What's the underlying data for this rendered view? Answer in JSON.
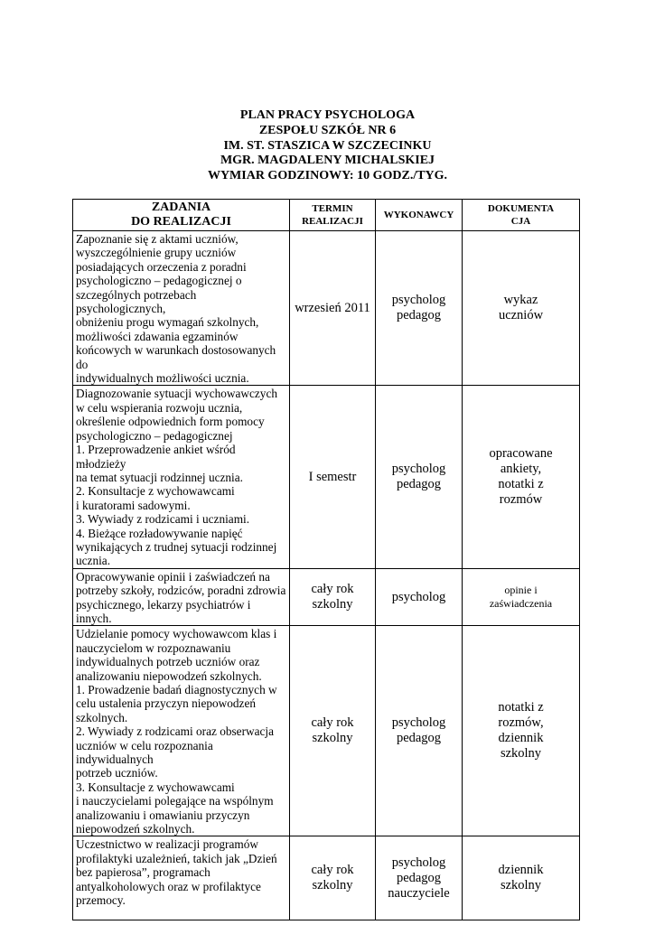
{
  "title_lines": [
    "PLAN PRACY PSYCHOLOGA",
    "ZESPOŁU SZKÓŁ NR 6",
    "IM. ST. STASZICA W SZCZECINKU",
    "MGR. MAGDALENY MICHALSKIEJ",
    "WYMIAR GODZINOWY: 10 GODZ./TYG."
  ],
  "table": {
    "headers": [
      [
        "ZADANIA",
        "DO REALIZACJI"
      ],
      [
        "TERMIN",
        "REALIZACJI"
      ],
      [
        "WYKONAWCY"
      ],
      [
        "DOKUMENTA",
        "CJA"
      ]
    ],
    "rows": [
      {
        "task": [
          "Zapoznanie się z aktami uczniów,",
          "wyszczególnienie grupy uczniów",
          "posiadających orzeczenia z poradni",
          "psychologiczno – pedagogicznej o",
          "szczególnych potrzebach psychologicznych,",
          "obniżeniu progu wymagań szkolnych,",
          "możliwości zdawania egzaminów",
          "końcowych w warunkach dostosowanych do",
          "indywidualnych możliwości ucznia."
        ],
        "termin": [
          "wrzesień 2011"
        ],
        "wykonawcy": [
          "psycholog",
          "pedagog"
        ],
        "dokumentacja": [
          "wykaz",
          "uczniów"
        ]
      },
      {
        "task": [
          "Diagnozowanie sytuacji wychowawczych",
          "w celu wspierania rozwoju ucznia,",
          "określenie odpowiednich form pomocy",
          "psychologiczno – pedagogicznej",
          "1. Przeprowadzenie ankiet wśród młodzieży",
          "na temat sytuacji rodzinnej ucznia.",
          "2. Konsultacje z wychowawcami",
          "i kuratorami sadowymi.",
          "3. Wywiady z rodzicami i uczniami.",
          "4. Bieżące rozładowywanie napięć",
          "wynikających z trudnej sytuacji rodzinnej",
          "ucznia."
        ],
        "termin": [
          "I semestr"
        ],
        "wykonawcy": [
          "psycholog",
          "pedagog"
        ],
        "dokumentacja": [
          "opracowane",
          "ankiety,",
          "notatki z",
          "rozmów"
        ]
      },
      {
        "task": [
          "Opracowywanie opinii i zaświadczeń na",
          "potrzeby szkoły, rodziców, poradni zdrowia",
          "psychicznego, lekarzy psychiatrów i innych."
        ],
        "termin": [
          "cały rok",
          "szkolny"
        ],
        "wykonawcy": [
          "psycholog"
        ],
        "dokumentacja": [
          "opinie i",
          "zaświadczenia"
        ],
        "doc_small": true
      },
      {
        "task": [
          "Udzielanie pomocy wychowawcom klas  i",
          "nauczycielom w rozpoznawaniu",
          "indywidualnych potrzeb uczniów oraz",
          "analizowaniu niepowodzeń szkolnych.",
          "1. Prowadzenie badań diagnostycznych w",
          "celu ustalenia przyczyn niepowodzeń",
          "szkolnych.",
          "2. Wywiady z rodzicami oraz obserwacja",
          "uczniów w celu rozpoznania indywidualnych",
          "potrzeb uczniów.",
          "3. Konsultacje z wychowawcami",
          "i nauczycielami polegające na wspólnym",
          "analizowaniu i omawianiu przyczyn",
          "niepowodzeń szkolnych."
        ],
        "termin": [
          "cały rok",
          "szkolny"
        ],
        "wykonawcy": [
          "psycholog",
          "pedagog"
        ],
        "dokumentacja": [
          "notatki z",
          "rozmów,",
          "dziennik",
          "szkolny"
        ]
      },
      {
        "task": [
          "Uczestnictwo w realizacji programów",
          "profilaktyki uzależnień, takich jak „Dzień",
          "bez papierosa”, programach",
          "antyalkoholowych oraz w profilaktyce",
          "przemocy."
        ],
        "termin": [
          "cały rok",
          "szkolny"
        ],
        "wykonawcy": [
          "psycholog",
          "pedagog",
          "nauczyciele"
        ],
        "dokumentacja": [
          "dziennik",
          "szkolny"
        ]
      }
    ]
  }
}
